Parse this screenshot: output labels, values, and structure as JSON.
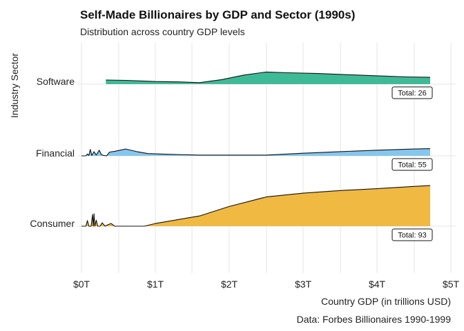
{
  "chart_data": {
    "type": "area",
    "title": "Self-Made Billionaires by GDP and Sector (1990s)",
    "subtitle": "Distribution across country GDP levels",
    "xlabel": "Country GDP (in trillions USD)",
    "ylabel": "Industry Sector",
    "caption": "Data: Forbes Billionaires 1990-1999",
    "xlim": [
      0,
      5
    ],
    "x_ticks": [
      0,
      1,
      2,
      3,
      4,
      5
    ],
    "x_tick_labels": [
      "$0T",
      "$1T",
      "$2T",
      "$3T",
      "$4T",
      "$5T"
    ],
    "grid": true,
    "series": [
      {
        "name": "Software",
        "color": "#3fba96",
        "total_label": "Total: 26",
        "points": [
          [
            0.33,
            0.11
          ],
          [
            0.6,
            0.1
          ],
          [
            1.0,
            0.07
          ],
          [
            1.3,
            0.06
          ],
          [
            1.6,
            0.04
          ],
          [
            1.9,
            0.12
          ],
          [
            2.2,
            0.24
          ],
          [
            2.5,
            0.32
          ],
          [
            2.8,
            0.3
          ],
          [
            3.2,
            0.28
          ],
          [
            3.6,
            0.25
          ],
          [
            4.0,
            0.22
          ],
          [
            4.4,
            0.19
          ],
          [
            4.72,
            0.18
          ]
        ]
      },
      {
        "name": "Financial",
        "color": "#85c6ee",
        "total_label": "Total: 55",
        "points": [
          [
            0.0,
            0.0
          ],
          [
            0.06,
            0.0
          ],
          [
            0.08,
            0.05
          ],
          [
            0.1,
            0.01
          ],
          [
            0.12,
            0.17
          ],
          [
            0.14,
            0.01
          ],
          [
            0.17,
            0.11
          ],
          [
            0.2,
            0.02
          ],
          [
            0.24,
            0.15
          ],
          [
            0.27,
            0.03
          ],
          [
            0.3,
            0.01
          ],
          [
            0.34,
            0.0
          ],
          [
            0.38,
            0.1
          ],
          [
            0.45,
            0.12
          ],
          [
            0.6,
            0.18
          ],
          [
            0.75,
            0.11
          ],
          [
            0.9,
            0.06
          ],
          [
            1.2,
            0.04
          ],
          [
            1.6,
            0.02
          ],
          [
            2.5,
            0.02
          ],
          [
            3.0,
            0.07
          ],
          [
            3.5,
            0.11
          ],
          [
            4.0,
            0.15
          ],
          [
            4.5,
            0.18
          ],
          [
            4.72,
            0.19
          ]
        ]
      },
      {
        "name": "Consumer",
        "color": "#efb942",
        "total_label": "Total: 93",
        "points": [
          [
            0.0,
            0.0
          ],
          [
            0.06,
            0.0
          ],
          [
            0.08,
            0.15
          ],
          [
            0.1,
            0.0
          ],
          [
            0.13,
            0.0
          ],
          [
            0.15,
            0.31
          ],
          [
            0.16,
            0.0
          ],
          [
            0.17,
            0.33
          ],
          [
            0.18,
            0.0
          ],
          [
            0.2,
            0.16
          ],
          [
            0.22,
            0.0
          ],
          [
            0.25,
            0.0
          ],
          [
            0.28,
            0.09
          ],
          [
            0.32,
            0.0
          ],
          [
            0.36,
            0.04
          ],
          [
            0.4,
            0.07
          ],
          [
            0.45,
            0.0
          ],
          [
            0.85,
            0.0
          ],
          [
            1.0,
            0.07
          ],
          [
            1.3,
            0.17
          ],
          [
            1.6,
            0.27
          ],
          [
            2.0,
            0.52
          ],
          [
            2.5,
            0.77
          ],
          [
            3.0,
            0.87
          ],
          [
            3.5,
            0.94
          ],
          [
            4.0,
            0.99
          ],
          [
            4.5,
            1.05
          ],
          [
            4.72,
            1.07
          ]
        ]
      }
    ]
  }
}
